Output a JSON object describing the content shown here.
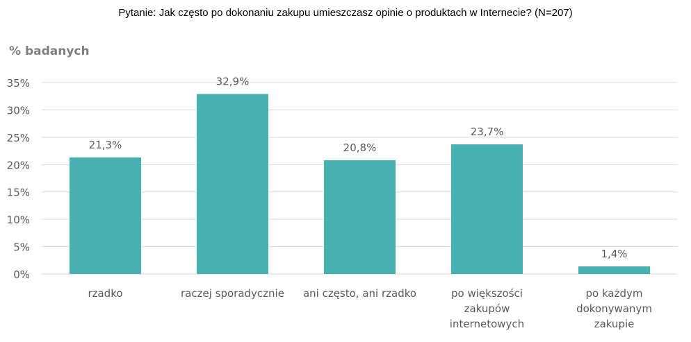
{
  "title": "Pytanie: Jak często po dokonaniu zakupu umieszczasz opinie o produktach w Internecie? (N=207)",
  "colors": {
    "bar": "#46b1ae",
    "grid": "#d9d9d9",
    "text": "#595959"
  },
  "chart_data": {
    "type": "bar",
    "title": "Pytanie: Jak często po dokonaniu zakupu umieszczasz opinie o produktach w Internecie? (N=207)",
    "ylabel": "% badanych",
    "xlabel": "",
    "categories": [
      [
        "rzadko"
      ],
      [
        "raczej sporadycznie"
      ],
      [
        "ani często, ani rzadko"
      ],
      [
        "po większości",
        "zakupów",
        "internetowych"
      ],
      [
        "po każdym",
        "dokonywanym",
        "zakupie"
      ]
    ],
    "values": [
      21.3,
      32.9,
      20.8,
      23.7,
      1.4
    ],
    "value_labels": [
      "21,3%",
      "32,9%",
      "20,8%",
      "23,7%",
      "1,4%"
    ],
    "ylim": [
      0,
      35
    ],
    "yticks": [
      0,
      5,
      10,
      15,
      20,
      25,
      30,
      35
    ],
    "ytick_labels": [
      "0%",
      "5%",
      "10%",
      "15%",
      "20%",
      "25%",
      "30%",
      "35%"
    ],
    "grid": true,
    "legend": "none"
  }
}
